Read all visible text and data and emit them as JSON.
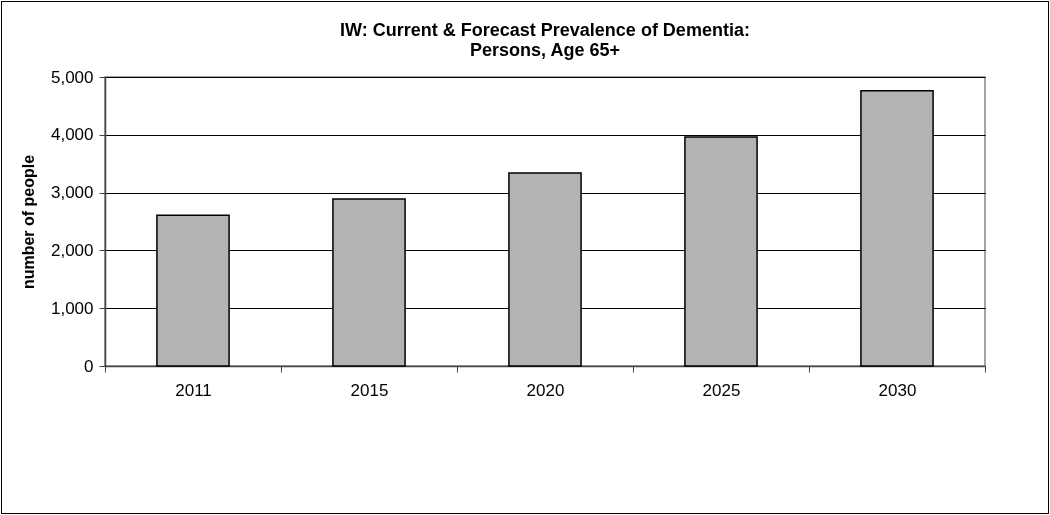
{
  "chart_data": {
    "type": "bar",
    "title": [
      "IW: Current & Forecast Prevalence of Dementia:",
      "Persons, Age 65+"
    ],
    "ylabel": "number of people",
    "categories": [
      "2011",
      "2015",
      "2020",
      "2025",
      "2030"
    ],
    "values": [
      2610,
      2890,
      3340,
      3960,
      4760
    ],
    "color": "#b3b3b3",
    "ylim": [
      0,
      5000
    ],
    "yticks": [
      {
        "value": 0,
        "label": "0"
      },
      {
        "value": 1000,
        "label": "1,000"
      },
      {
        "value": 2000,
        "label": "2,000"
      },
      {
        "value": 3000,
        "label": "3,000"
      },
      {
        "value": 4000,
        "label": "4,000"
      },
      {
        "value": 5000,
        "label": "5,000"
      }
    ],
    "grid": "y"
  }
}
